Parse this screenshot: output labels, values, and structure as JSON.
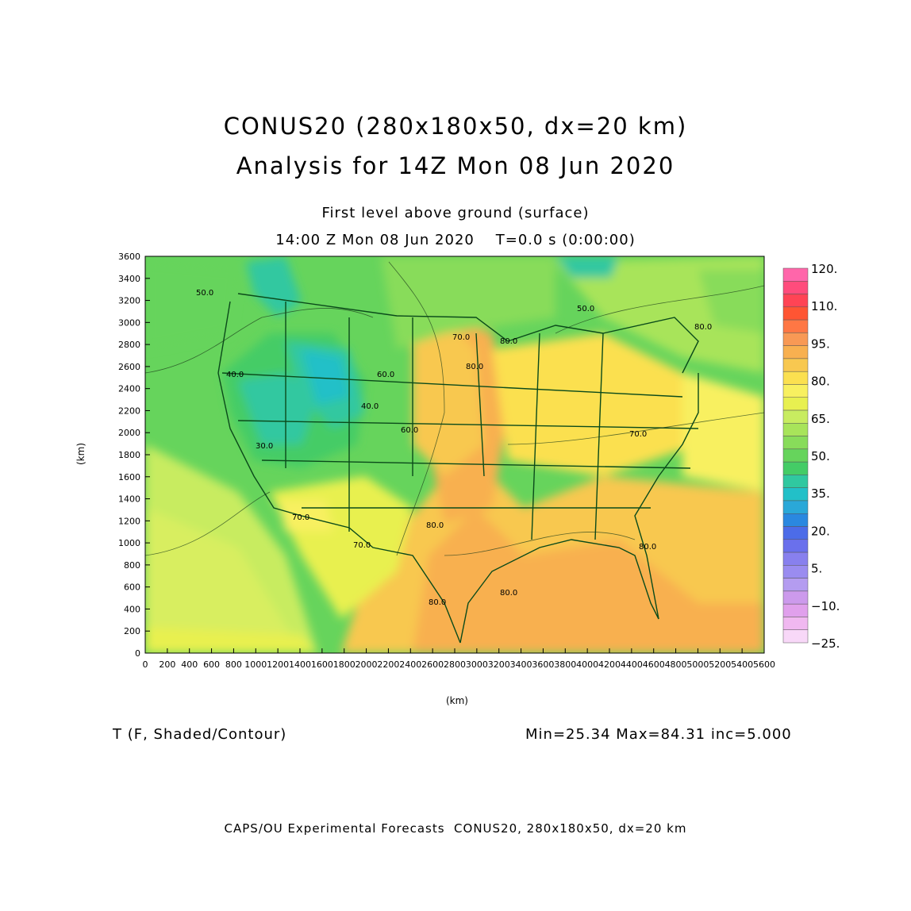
{
  "title": {
    "line1": "CONUS20 (280x180x50, dx=20 km)",
    "line2": "Analysis for 14Z Mon 08 Jun 2020"
  },
  "subtitle": {
    "level": "First level above ground (surface)",
    "time": "14:00 Z Mon 08 Jun 2020    T=0.0 s (0:00:00)"
  },
  "axes": {
    "x_label": "(km)",
    "y_label": "(km)",
    "x_range": [
      0,
      5600
    ],
    "y_range": [
      0,
      3600
    ],
    "x_ticks": [
      "0",
      "200",
      "400",
      "600",
      "800",
      "1000",
      "1200",
      "1400",
      "1600",
      "1800",
      "2000",
      "2200",
      "2400",
      "2600",
      "2800",
      "3000",
      "3200",
      "3400",
      "3600",
      "3800",
      "4000",
      "4200",
      "4400",
      "4600",
      "4800",
      "5000",
      "5200",
      "5400",
      "5600"
    ],
    "y_ticks": [
      "0",
      "200",
      "400",
      "600",
      "800",
      "1000",
      "1200",
      "1400",
      "1600",
      "1800",
      "2000",
      "2200",
      "2400",
      "2600",
      "2800",
      "3000",
      "3200",
      "3400",
      "3600"
    ]
  },
  "colorbar": {
    "labels": [
      "120.",
      "110.",
      "95.",
      "80.",
      "65.",
      "50.",
      "35.",
      "20.",
      "5.",
      "−10.",
      "−25."
    ],
    "colors": [
      "#ff66aa",
      "#ff4c7c",
      "#ff4455",
      "#ff5533",
      "#ff7744",
      "#f89955",
      "#f8b050",
      "#f8c850",
      "#fbe050",
      "#f8f060",
      "#e8f050",
      "#c8ec60",
      "#a8e45a",
      "#88dc5a",
      "#66d45c",
      "#44cc66",
      "#30c8a0",
      "#22c0c8",
      "#2aa8d8",
      "#2a88e0",
      "#4c6ce8",
      "#6a70ec",
      "#8880ee",
      "#9a8cf0",
      "#b49cf0",
      "#cc9aec",
      "#e0a0ec",
      "#f0b8f0",
      "#f8d8f8"
    ]
  },
  "contour_labels": [
    "50.0",
    "50.0",
    "80.0",
    "70.0",
    "80.0",
    "70.0",
    "60.0",
    "40.0",
    "60.0",
    "70.0",
    "80.0",
    "80.0",
    "70.0",
    "80.0",
    "80.0",
    "80.0",
    "30.0",
    "40.0"
  ],
  "variable": "T (F, Shaded/Contour)",
  "stats": "Min=25.34 Max=84.31 inc=5.000",
  "footer": "CAPS/OU Experimental Forecasts  CONUS20, 280x180x50, dx=20 km"
}
